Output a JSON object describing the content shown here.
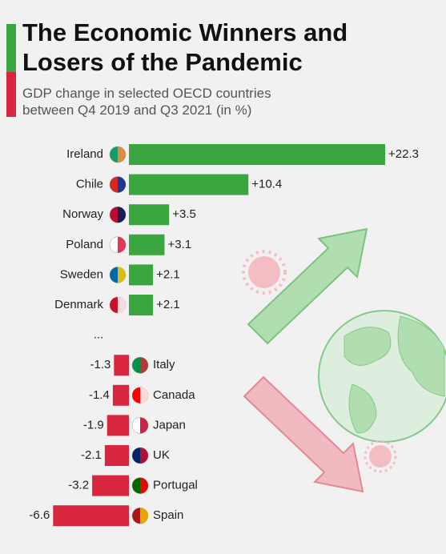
{
  "chart_data": {
    "type": "bar",
    "orientation": "horizontal",
    "title": "The Economic Winners and Losers of the Pandemic",
    "subtitle": "GDP change in selected OECD countries between Q4 2019 and Q3 2021 (in %)",
    "categories": [
      "Ireland",
      "Chile",
      "Norway",
      "Poland",
      "Sweden",
      "Denmark",
      "...",
      "Italy",
      "Canada",
      "Japan",
      "UK",
      "Portugal",
      "Spain"
    ],
    "values": [
      22.3,
      10.4,
      3.5,
      3.1,
      2.1,
      2.1,
      null,
      -1.3,
      -1.4,
      -1.9,
      -2.1,
      -3.2,
      -6.6
    ],
    "value_labels": [
      "+22.3",
      "+10.4",
      "+3.5",
      "+3.1",
      "+2.1",
      "+2.1",
      null,
      "-1.3",
      "-1.4",
      "-1.9",
      "-2.1",
      "-3.2",
      "-6.6"
    ],
    "positive_color": "#3aa63f",
    "negative_color": "#d7263d"
  }
}
